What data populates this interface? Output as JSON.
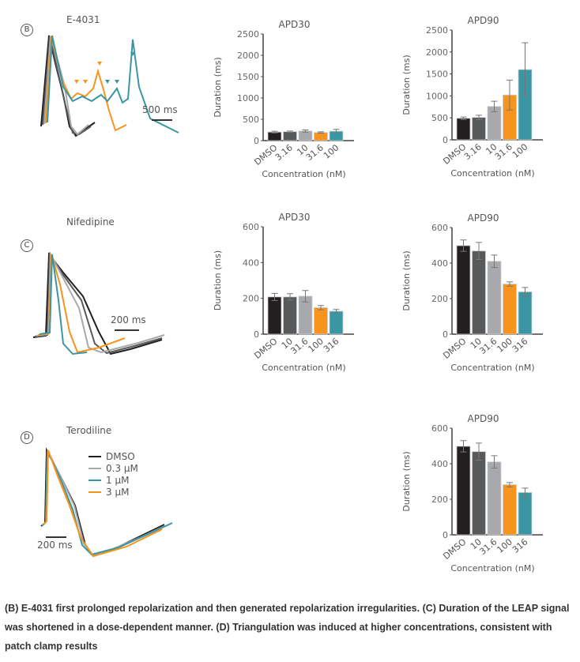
{
  "panels": [
    {
      "letter": "B",
      "drug": "E-4031",
      "scale_bar": "500 ms"
    },
    {
      "letter": "C",
      "drug": "Nifedipine",
      "scale_bar": "200 ms"
    },
    {
      "letter": "D",
      "drug": "Terodiline",
      "scale_bar": "200 ms",
      "legend": [
        "DMSO",
        "0.3 µM",
        "1 µM",
        "3 µM"
      ]
    }
  ],
  "colors": {
    "dmso": "#231f20",
    "c1": "#58595b",
    "c2": "#a7a9ac",
    "c3": "#f7941d",
    "c4": "#3a96a4"
  },
  "caption": "(B) E-4031 first prolonged repolarization and then generated repolarization irregularities. (C) Duration of the LEAP signal was shortened in a dose-dependent manner. (D) Triangulation was induced at higher concentrations, consistent with patch clamp results",
  "chart_data": [
    {
      "id": "b-apd30",
      "type": "bar",
      "title": "APD30",
      "xlabel": "Concentration (nM)",
      "ylabel": "Duration (ms)",
      "categories": [
        "DMSO",
        "3.16",
        "10",
        "31.6",
        "100"
      ],
      "values": [
        200,
        210,
        225,
        190,
        220
      ],
      "errors": [
        20,
        15,
        25,
        15,
        45
      ],
      "ylim": [
        0,
        2500
      ],
      "yticks": [
        0,
        500,
        1000,
        1500,
        2000,
        2500
      ]
    },
    {
      "id": "b-apd90",
      "type": "bar",
      "title": "APD90",
      "xlabel": "Concentration (nM)",
      "ylabel": "Duration (ms)",
      "categories": [
        "DMSO",
        "3.16",
        "10",
        "31.6",
        "100"
      ],
      "values": [
        490,
        510,
        760,
        1020,
        1600
      ],
      "errors": [
        30,
        50,
        120,
        340,
        610
      ],
      "ylim": [
        0,
        2500
      ],
      "yticks": [
        0,
        500,
        1000,
        1500,
        2000,
        2500
      ]
    },
    {
      "id": "c-apd30",
      "type": "bar",
      "title": "APD30",
      "xlabel": "Concentration (nM)",
      "ylabel": "Duration (ms)",
      "categories": [
        "DMSO",
        "10",
        "31.6",
        "100",
        "316"
      ],
      "values": [
        208,
        208,
        212,
        148,
        128
      ],
      "errors": [
        20,
        18,
        32,
        12,
        10
      ],
      "ylim": [
        0,
        600
      ],
      "yticks": [
        0,
        200,
        400,
        600
      ]
    },
    {
      "id": "c-apd90",
      "type": "bar",
      "title": "APD90",
      "xlabel": "Concentration (nM)",
      "ylabel": "Duration (ms)",
      "categories": [
        "DMSO",
        "10",
        "31.6",
        "100",
        "316"
      ],
      "values": [
        498,
        468,
        410,
        282,
        238
      ],
      "errors": [
        32,
        48,
        35,
        12,
        25
      ],
      "ylim": [
        0,
        600
      ],
      "yticks": [
        0,
        200,
        400,
        600
      ]
    },
    {
      "id": "d-apd90",
      "type": "bar",
      "title": "APD90",
      "xlabel": "Concentration (nM)",
      "ylabel": "Duration (ms)",
      "categories": [
        "DMSO",
        "10",
        "31.6",
        "100",
        "316"
      ],
      "values": [
        498,
        468,
        410,
        282,
        238
      ],
      "errors": [
        32,
        48,
        35,
        12,
        25
      ],
      "ylim": [
        0,
        600
      ],
      "yticks": [
        0,
        200,
        400,
        600
      ]
    }
  ]
}
